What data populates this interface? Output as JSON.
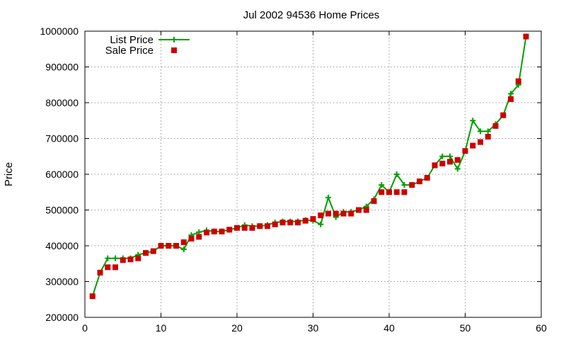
{
  "chart_data": {
    "type": "line",
    "title": "Jul 2002 94536 Home Prices",
    "xlabel": "",
    "ylabel": "Price",
    "xlim": [
      0,
      60
    ],
    "ylim": [
      200000,
      1000000
    ],
    "x_ticks": [
      0,
      10,
      20,
      30,
      40,
      50,
      60
    ],
    "y_ticks": [
      200000,
      300000,
      400000,
      500000,
      600000,
      700000,
      800000,
      900000,
      1000000
    ],
    "grid": true,
    "legend_position": "top-left",
    "series": [
      {
        "name": "List Price",
        "style": "line-plus",
        "color": "#00a000",
        "x": [
          1,
          2,
          3,
          4,
          5,
          6,
          7,
          8,
          9,
          10,
          11,
          12,
          13,
          14,
          15,
          16,
          17,
          18,
          19,
          20,
          21,
          22,
          23,
          24,
          25,
          26,
          27,
          28,
          29,
          30,
          31,
          32,
          33,
          34,
          35,
          36,
          37,
          38,
          39,
          40,
          41,
          42,
          43,
          44,
          45,
          46,
          47,
          48,
          49,
          50,
          51,
          52,
          53,
          54,
          55,
          56,
          57,
          58
        ],
        "values": [
          259000,
          325000,
          365000,
          365000,
          365000,
          365000,
          375000,
          380000,
          385000,
          400000,
          400000,
          400000,
          390000,
          430000,
          438000,
          443000,
          440000,
          440000,
          445000,
          450000,
          458000,
          455000,
          455000,
          458000,
          465000,
          468000,
          468000,
          468000,
          472000,
          470000,
          460000,
          535000,
          480000,
          495000,
          495000,
          500000,
          510000,
          530000,
          570000,
          550000,
          600000,
          570000,
          570000,
          580000,
          590000,
          625000,
          650000,
          650000,
          615000,
          665000,
          750000,
          720000,
          720000,
          740000,
          765000,
          825000,
          850000,
          985000
        ]
      },
      {
        "name": "Sale Price",
        "style": "square-markers",
        "color": "#cc0000",
        "x": [
          1,
          2,
          3,
          4,
          5,
          6,
          7,
          8,
          9,
          10,
          11,
          12,
          13,
          14,
          15,
          16,
          17,
          18,
          19,
          20,
          21,
          22,
          23,
          24,
          25,
          26,
          27,
          28,
          29,
          30,
          31,
          32,
          33,
          34,
          35,
          36,
          37,
          38,
          39,
          40,
          41,
          42,
          43,
          44,
          45,
          46,
          47,
          48,
          49,
          50,
          51,
          52,
          53,
          54,
          55,
          56,
          57,
          58
        ],
        "values": [
          259000,
          325000,
          340000,
          340000,
          360000,
          362000,
          365000,
          380000,
          385000,
          400000,
          400000,
          400000,
          410000,
          420000,
          425000,
          437000,
          440000,
          440000,
          445000,
          450000,
          450000,
          450000,
          455000,
          455000,
          460000,
          465000,
          465000,
          465000,
          470000,
          475000,
          485000,
          490000,
          490000,
          490000,
          490000,
          500000,
          500000,
          525000,
          550000,
          550000,
          550000,
          550000,
          570000,
          580000,
          590000,
          625000,
          630000,
          635000,
          640000,
          665000,
          680000,
          690000,
          705000,
          735000,
          765000,
          810000,
          860000,
          985000
        ]
      }
    ]
  }
}
